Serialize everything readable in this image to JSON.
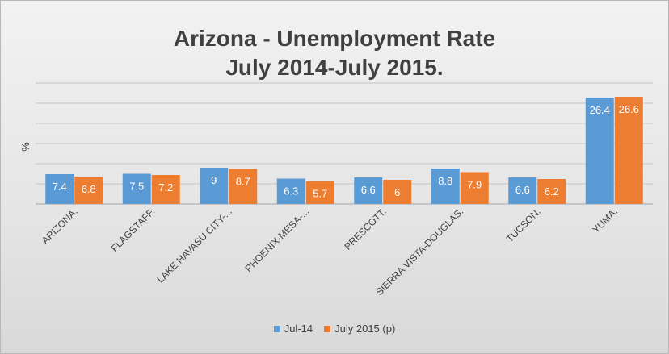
{
  "chart_data": {
    "type": "bar",
    "title_lines": [
      "Arizona - Unemployment Rate",
      "July 2014-July 2015."
    ],
    "ylabel": "%",
    "ylim": [
      0,
      30
    ],
    "grid": true,
    "legend_position": "bottom",
    "categories": [
      "ARIZONA.",
      "FLAGSTAFF.",
      "LAKE HAVASU CITY-...",
      "PHOENIX-MESA-...",
      "PRESCOTT.",
      "SIERRA VISTA-DOUGLAS.",
      "TUCSON.",
      "YUMA."
    ],
    "series": [
      {
        "name": "Jul-14",
        "color": "#5b9bd5",
        "values": [
          7.4,
          7.5,
          9,
          6.3,
          6.6,
          8.8,
          6.6,
          26.4
        ]
      },
      {
        "name": "July 2015 (p)",
        "color": "#ed7d31",
        "values": [
          6.8,
          7.2,
          8.7,
          5.7,
          6,
          7.9,
          6.2,
          26.6
        ]
      }
    ]
  }
}
